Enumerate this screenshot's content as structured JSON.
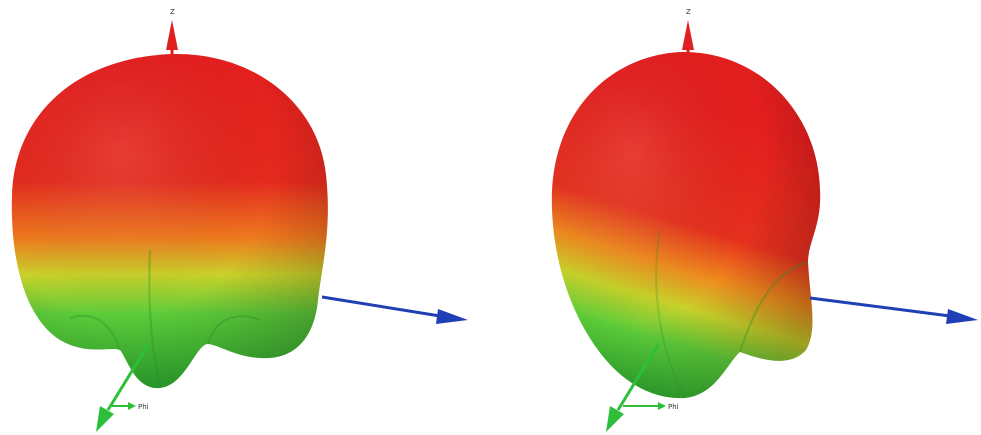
{
  "figures": [
    {
      "id": "left",
      "axes": {
        "z_label": "Z",
        "phi_label": "Phi"
      }
    },
    {
      "id": "right",
      "axes": {
        "z_label": "Z",
        "phi_label": "Phi"
      }
    }
  ],
  "colors": {
    "pattern_high": "#e81c1c",
    "pattern_mid": "#f3a21c",
    "pattern_low": "#3cc13c",
    "axis_z": "#e02020",
    "axis_x": "#1f3fb5",
    "axis_y": "#2ebf3a"
  }
}
